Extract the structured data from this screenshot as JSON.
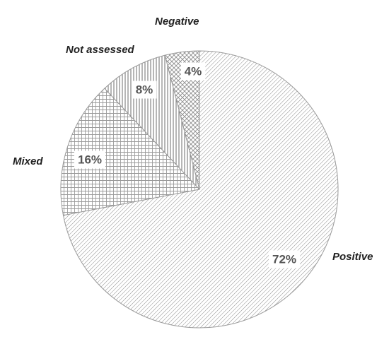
{
  "chart_data": {
    "type": "pie",
    "title": "",
    "categories": [
      "Positive",
      "Mixed",
      "Not assessed",
      "Negative"
    ],
    "values": [
      72,
      16,
      8,
      4
    ],
    "labels": [
      "72%",
      "16%",
      "8%",
      "4%"
    ],
    "patterns": [
      "diagonal-lines",
      "fine-grid",
      "vertical-lines",
      "cross-hatch"
    ],
    "start_angle_deg": 0,
    "direction": "clockwise",
    "legend": "none",
    "colors": {
      "outline": "#9a9a9a",
      "pattern_stroke": "#8c8c8c",
      "label_bg": "#ffffff",
      "label_text": "#555555",
      "category_text": "#222222"
    }
  }
}
